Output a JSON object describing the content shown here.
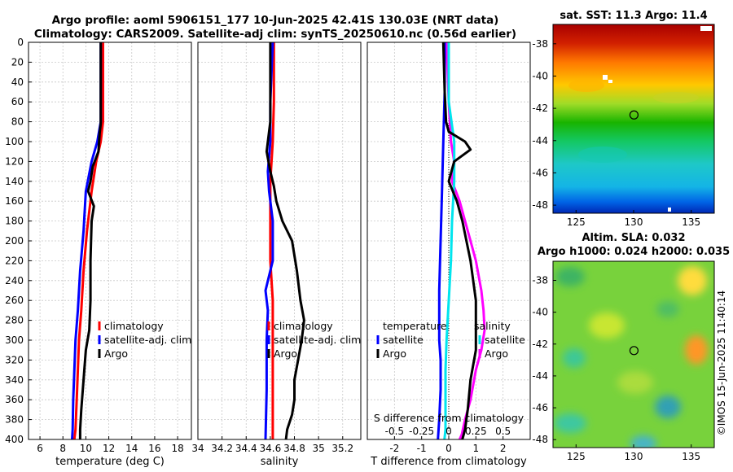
{
  "title_line1": "Argo profile: aoml 5906151_177 10-Jun-2025 42.41S 130.03E (NRT data)",
  "title_line2": "Climatology: CARS2009. Satellite-adj clim: synTS_20250610.nc (0.56d earlier)",
  "sst_title": "sat. SST: 11.3 Argo: 11.4",
  "sla_title1": "Altim. SLA: 0.032",
  "sla_title2": "Argo h1000: 0.024 h2000: 0.035",
  "credit": "©IMOS 15-Jun-2025 11:40:14",
  "colors": {
    "climatology": "#ff0000",
    "satellite": "#0000ff",
    "argo": "#000000",
    "t_sat": "#0000ff",
    "s_sat": "#00e5ee",
    "s_argo": "#ff00ff"
  },
  "chart_data": [
    {
      "id": "temp",
      "type": "line",
      "xlabel": "temperature (deg C)",
      "ylabel": "",
      "xlim": [
        5,
        19.2
      ],
      "ylim": [
        0,
        400
      ],
      "y_reversed": true,
      "xticks": [
        6,
        8,
        10,
        12,
        14,
        16,
        18
      ],
      "yticks": [
        0,
        20,
        40,
        60,
        80,
        100,
        120,
        140,
        160,
        180,
        200,
        220,
        240,
        260,
        280,
        300,
        320,
        340,
        360,
        380,
        400
      ],
      "legend": [
        "climatology",
        "satellite-adj. clim",
        "Argo"
      ],
      "legend_position": "right-middle",
      "series": [
        {
          "name": "climatology",
          "x": [
            11.5,
            11.5,
            11.5,
            11.3,
            10.9,
            10.5,
            10.1,
            9.8,
            9.6,
            9.4,
            9.3,
            9.2,
            9.1,
            9.0
          ],
          "y": [
            0,
            40,
            80,
            100,
            120,
            150,
            190,
            230,
            270,
            300,
            330,
            360,
            390,
            400
          ]
        },
        {
          "name": "satellite-adj. clim",
          "x": [
            11.3,
            11.3,
            11.3,
            11.0,
            10.5,
            10.0,
            9.8,
            9.5,
            9.3,
            9.1,
            9.0,
            8.9,
            8.85,
            8.8
          ],
          "y": [
            0,
            40,
            80,
            100,
            120,
            150,
            190,
            230,
            270,
            300,
            330,
            360,
            390,
            400
          ]
        },
        {
          "name": "Argo",
          "x": [
            11.3,
            11.3,
            11.3,
            11.2,
            11.1,
            10.6,
            10.4,
            10.2,
            10.7,
            10.5,
            10.4,
            10.4,
            10.3,
            10.0,
            9.8,
            9.6,
            9.5,
            9.5
          ],
          "y": [
            0,
            40,
            82,
            92,
            110,
            125,
            140,
            150,
            165,
            180,
            220,
            260,
            290,
            310,
            340,
            370,
            390,
            400
          ]
        }
      ]
    },
    {
      "id": "sal",
      "type": "line",
      "xlabel": "salinity",
      "ylabel": "",
      "xlim": [
        34.0,
        35.35
      ],
      "ylim": [
        0,
        400
      ],
      "y_reversed": true,
      "xticks": [
        34,
        34.2,
        34.4,
        34.6,
        34.8,
        35,
        35.2
      ],
      "legend": [
        "climatology",
        "satellite-adj. clim",
        "Argo"
      ],
      "legend_position": "right-middle",
      "series": [
        {
          "name": "climatology",
          "x": [
            34.63,
            34.63,
            34.62,
            34.61,
            34.6,
            34.6,
            34.6,
            34.62,
            34.62,
            34.62,
            34.62
          ],
          "y": [
            0,
            60,
            100,
            120,
            140,
            180,
            220,
            260,
            300,
            350,
            400
          ]
        },
        {
          "name": "satellite-adj. clim",
          "x": [
            34.62,
            34.6,
            34.6,
            34.58,
            34.59,
            34.62,
            34.62,
            34.56,
            34.58,
            34.57,
            34.57,
            34.56
          ],
          "y": [
            0,
            60,
            100,
            130,
            150,
            180,
            220,
            250,
            270,
            300,
            350,
            400
          ]
        },
        {
          "name": "Argo",
          "x": [
            34.6,
            34.6,
            34.57,
            34.6,
            34.63,
            34.65,
            34.7,
            34.78,
            34.82,
            34.85,
            34.88,
            34.86,
            34.83,
            34.8,
            34.8,
            34.78,
            34.74,
            34.73
          ],
          "y": [
            0,
            80,
            110,
            130,
            145,
            160,
            180,
            200,
            230,
            260,
            280,
            300,
            320,
            340,
            360,
            375,
            390,
            400
          ]
        }
      ]
    },
    {
      "id": "diff",
      "type": "line",
      "xlabel": "T difference from climatology",
      "top_label": "S difference from climatology",
      "xlim": [
        -3,
        3
      ],
      "ylim": [
        0,
        400
      ],
      "y_reversed": true,
      "xticks": [
        -2,
        -1,
        0,
        1,
        2
      ],
      "s_ticks": [
        -0.5,
        -0.25,
        0,
        0.25,
        0.5
      ],
      "s_tick_labels": [
        "-0.5",
        "-0.25",
        "0",
        "0.25",
        "0.5"
      ],
      "legend_titles": [
        "temperature",
        "salinity"
      ],
      "legend_t": [
        "satellite",
        "Argo"
      ],
      "legend_s": [
        "satellite",
        "Argo"
      ],
      "series": [
        {
          "name": "T satellite",
          "x": [
            -0.15,
            -0.15,
            -0.2,
            -0.25,
            -0.3,
            -0.35,
            -0.35,
            -0.35,
            -0.3,
            -0.3,
            -0.35,
            -0.4
          ],
          "y": [
            0,
            50,
            100,
            150,
            200,
            250,
            280,
            300,
            320,
            350,
            380,
            400
          ]
        },
        {
          "name": "T Argo",
          "x": [
            -0.2,
            -0.15,
            -0.1,
            0,
            0.6,
            0.8,
            0.2,
            0,
            0.3,
            0.5,
            0.8,
            1.0,
            1.0,
            1.0,
            0.8,
            0.7,
            0.6,
            0.5
          ],
          "y": [
            0,
            50,
            80,
            90,
            100,
            108,
            120,
            140,
            160,
            180,
            220,
            260,
            290,
            310,
            340,
            370,
            390,
            400
          ]
        }
      ],
      "s_series": [
        {
          "name": "S satellite",
          "x": [
            0,
            0,
            0.05,
            0.05,
            0.03,
            0.02,
            0,
            -0.02,
            -0.03,
            -0.03,
            -0.03,
            -0.04
          ],
          "y": [
            0,
            60,
            100,
            140,
            180,
            220,
            260,
            300,
            330,
            360,
            390,
            400
          ]
        },
        {
          "name": "S Argo",
          "x": [
            -0.02,
            0,
            0.02,
            0.05,
            0.03,
            0.1,
            0.15,
            0.2,
            0.25,
            0.3,
            0.32,
            0.33,
            0.3,
            0.25,
            0.2,
            0.15,
            0.12,
            0.1
          ],
          "y": [
            0,
            60,
            100,
            120,
            140,
            160,
            180,
            200,
            220,
            250,
            270,
            290,
            310,
            330,
            360,
            380,
            395,
            400
          ]
        }
      ]
    },
    {
      "id": "sst_map",
      "type": "heatmap",
      "xlim": [
        123,
        137
      ],
      "ylim": [
        -48.5,
        -36.8
      ],
      "xticks": [
        125,
        130,
        135
      ],
      "yticks": [
        -38,
        -40,
        -42,
        -44,
        -46,
        -48
      ],
      "marker": {
        "lon": 130.03,
        "lat": -42.41
      }
    },
    {
      "id": "sla_map",
      "type": "heatmap",
      "xlim": [
        123,
        137
      ],
      "ylim": [
        -48.5,
        -36.8
      ],
      "xticks": [
        125,
        130,
        135
      ],
      "yticks": [
        -38,
        -40,
        -42,
        -44,
        -46,
        -48
      ],
      "marker": {
        "lon": 130.03,
        "lat": -42.41
      }
    }
  ]
}
